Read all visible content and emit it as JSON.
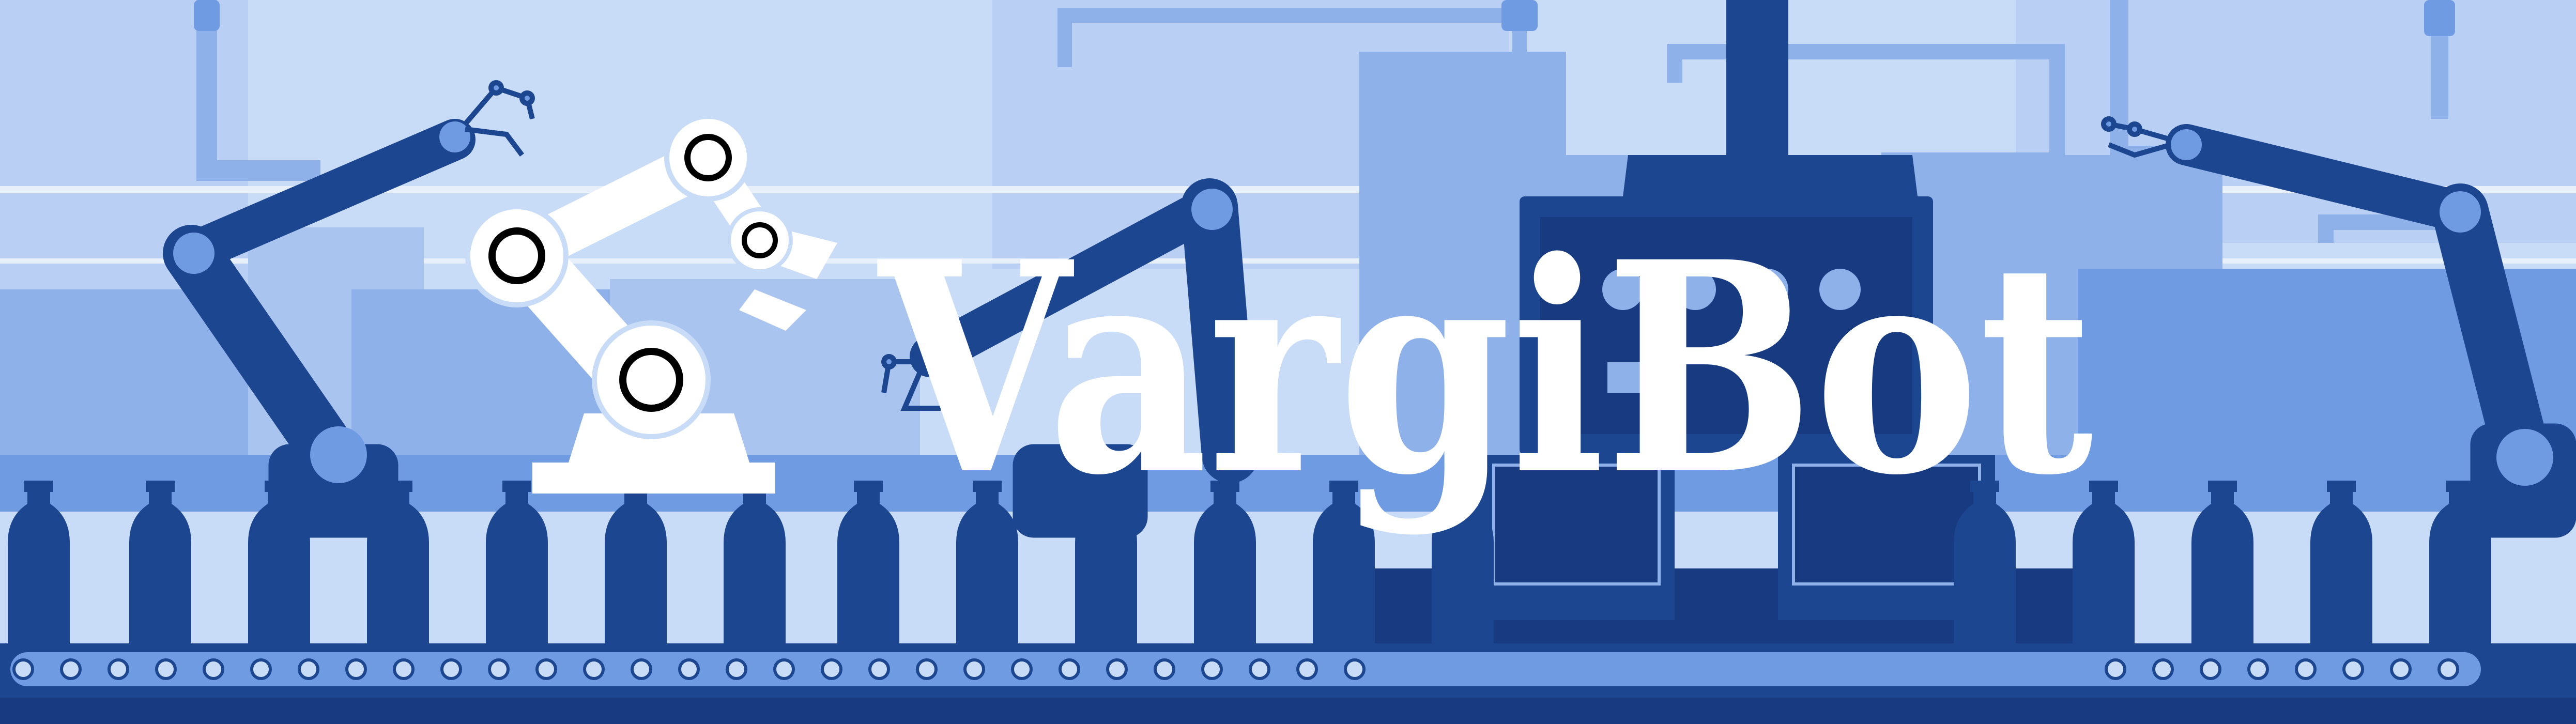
{
  "banner": {
    "title": "VargiBot"
  },
  "colors": {
    "sky": "#c9dcf7",
    "light_blue": "#a9c4ef",
    "mid_blue": "#6f9be3",
    "soft_blue": "#8fb1ea",
    "dark_blue": "#1d4691",
    "navy": "#173a80",
    "white": "#ffffff"
  },
  "icons": {
    "logo": "robot-arm-icon",
    "conveyor": "conveyor-belt",
    "bottle": "bottle-icon"
  }
}
